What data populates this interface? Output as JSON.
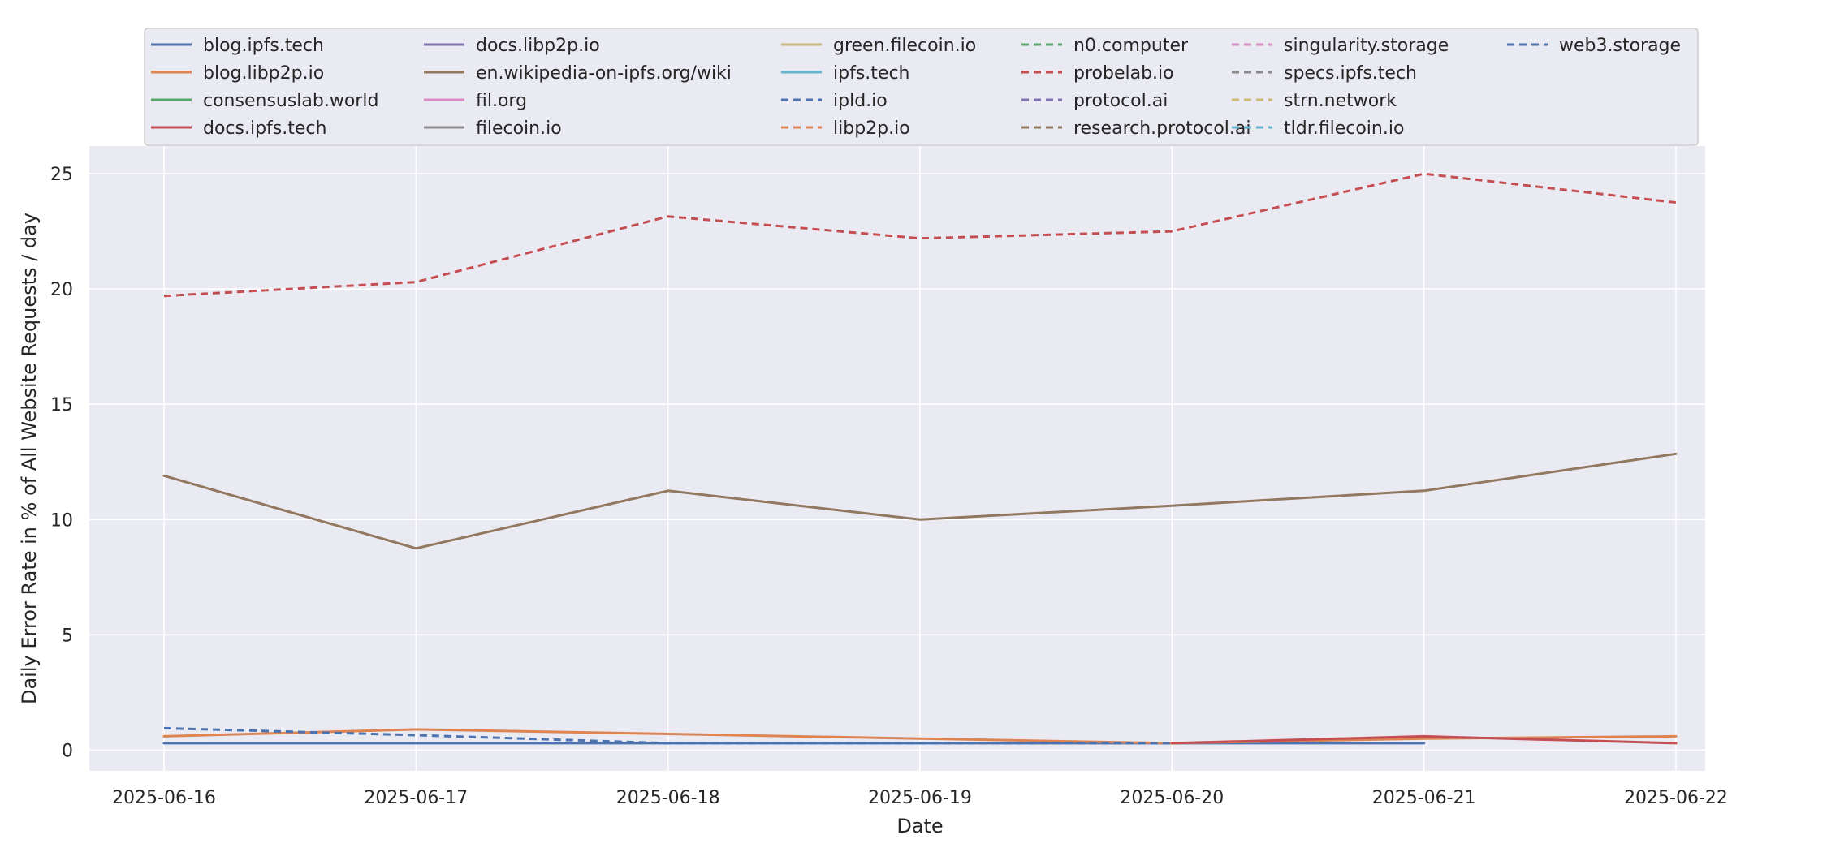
{
  "chart_data": {
    "type": "line",
    "xlabel": "Date",
    "ylabel": "Daily Error Rate in % of All Website Requests / day",
    "x": [
      "2025-06-16",
      "2025-06-17",
      "2025-06-18",
      "2025-06-19",
      "2025-06-20",
      "2025-06-21",
      "2025-06-22"
    ],
    "ylim": [
      -0.9,
      26.2
    ],
    "yticks": [
      0,
      5,
      10,
      15,
      20,
      25
    ],
    "grid": true,
    "legend_position": "top",
    "colors": {
      "plot_bg": "#eaeaf2",
      "grid": "#ffffff",
      "legend_bg": "#eaeaf2",
      "legend_border": "#cccccc"
    },
    "series": [
      {
        "name": "blog.ipfs.tech",
        "color": "#4c72b0",
        "dash": false,
        "values": [
          0.3,
          0.3,
          0.3,
          0.3,
          0.3,
          0.3,
          null
        ]
      },
      {
        "name": "blog.libp2p.io",
        "color": "#dd8452",
        "dash": false,
        "values": [
          0.6,
          0.9,
          0.7,
          0.5,
          0.3,
          0.5,
          0.6
        ]
      },
      {
        "name": "consensuslab.world",
        "color": "#55a868",
        "dash": false,
        "values": [
          null,
          null,
          null,
          null,
          null,
          null,
          null
        ]
      },
      {
        "name": "docs.ipfs.tech",
        "color": "#c44e52",
        "dash": false,
        "values": [
          null,
          null,
          null,
          null,
          0.3,
          0.6,
          0.3
        ]
      },
      {
        "name": "docs.libp2p.io",
        "color": "#8172b3",
        "dash": false,
        "values": [
          null,
          null,
          null,
          null,
          null,
          null,
          null
        ]
      },
      {
        "name": "en.wikipedia-on-ipfs.org/wiki",
        "color": "#937860",
        "dash": false,
        "values": [
          11.9,
          8.75,
          11.25,
          10.0,
          10.6,
          11.25,
          12.85
        ]
      },
      {
        "name": "fil.org",
        "color": "#da8bc3",
        "dash": false,
        "values": [
          null,
          null,
          null,
          null,
          null,
          null,
          null
        ]
      },
      {
        "name": "filecoin.io",
        "color": "#8c8c8c",
        "dash": false,
        "values": [
          null,
          null,
          null,
          null,
          null,
          null,
          null
        ]
      },
      {
        "name": "green.filecoin.io",
        "color": "#ccb974",
        "dash": false,
        "values": [
          null,
          null,
          null,
          null,
          null,
          null,
          null
        ]
      },
      {
        "name": "ipfs.tech",
        "color": "#64b5cd",
        "dash": false,
        "values": [
          null,
          null,
          null,
          null,
          null,
          null,
          null
        ]
      },
      {
        "name": "ipld.io",
        "color": "#4c72b0",
        "dash": true,
        "values": [
          0.95,
          0.65,
          0.3,
          0.3,
          0.3,
          null,
          null
        ]
      },
      {
        "name": "libp2p.io",
        "color": "#dd8452",
        "dash": true,
        "values": [
          null,
          null,
          null,
          null,
          null,
          null,
          null
        ]
      },
      {
        "name": "n0.computer",
        "color": "#55a868",
        "dash": true,
        "values": [
          null,
          null,
          null,
          null,
          null,
          null,
          null
        ]
      },
      {
        "name": "probelab.io",
        "color": "#c44e52",
        "dash": true,
        "values": [
          19.7,
          20.3,
          23.15,
          22.2,
          22.5,
          25.0,
          23.75
        ]
      },
      {
        "name": "protocol.ai",
        "color": "#8172b3",
        "dash": true,
        "values": [
          null,
          null,
          null,
          null,
          null,
          null,
          null
        ]
      },
      {
        "name": "research.protocol.ai",
        "color": "#937860",
        "dash": true,
        "values": [
          null,
          null,
          null,
          null,
          null,
          null,
          null
        ]
      },
      {
        "name": "singularity.storage",
        "color": "#da8bc3",
        "dash": true,
        "values": [
          null,
          null,
          null,
          null,
          null,
          null,
          null
        ]
      },
      {
        "name": "specs.ipfs.tech",
        "color": "#8c8c8c",
        "dash": true,
        "values": [
          null,
          null,
          null,
          null,
          null,
          null,
          null
        ]
      },
      {
        "name": "strn.network",
        "color": "#ccb974",
        "dash": true,
        "values": [
          null,
          null,
          null,
          null,
          null,
          null,
          null
        ]
      },
      {
        "name": "tldr.filecoin.io",
        "color": "#64b5cd",
        "dash": true,
        "values": [
          null,
          null,
          null,
          null,
          null,
          null,
          null
        ]
      },
      {
        "name": "web3.storage",
        "color": "#4c72b0",
        "dash": true,
        "values": [
          null,
          null,
          null,
          null,
          null,
          null,
          null
        ]
      }
    ]
  }
}
